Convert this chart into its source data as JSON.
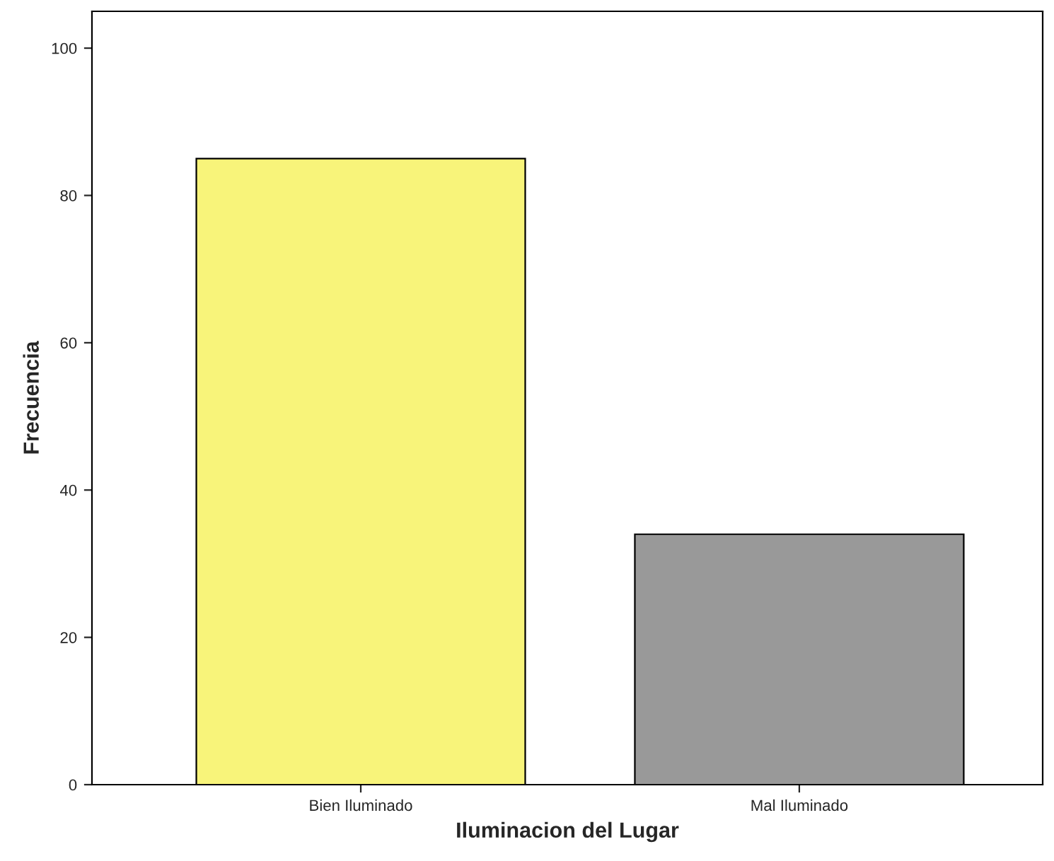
{
  "chart_data": {
    "type": "bar",
    "xlabel": "Iluminacion del Lugar",
    "ylabel": "Frecuencia",
    "categories": [
      "Bien Iluminado",
      "Mal Iluminado"
    ],
    "values": [
      85,
      34
    ],
    "colors": [
      "#f8f47a",
      "#999999"
    ],
    "ylim": [
      0,
      105
    ],
    "yticks": [
      0,
      20,
      40,
      60,
      80,
      100
    ],
    "grid": false
  }
}
